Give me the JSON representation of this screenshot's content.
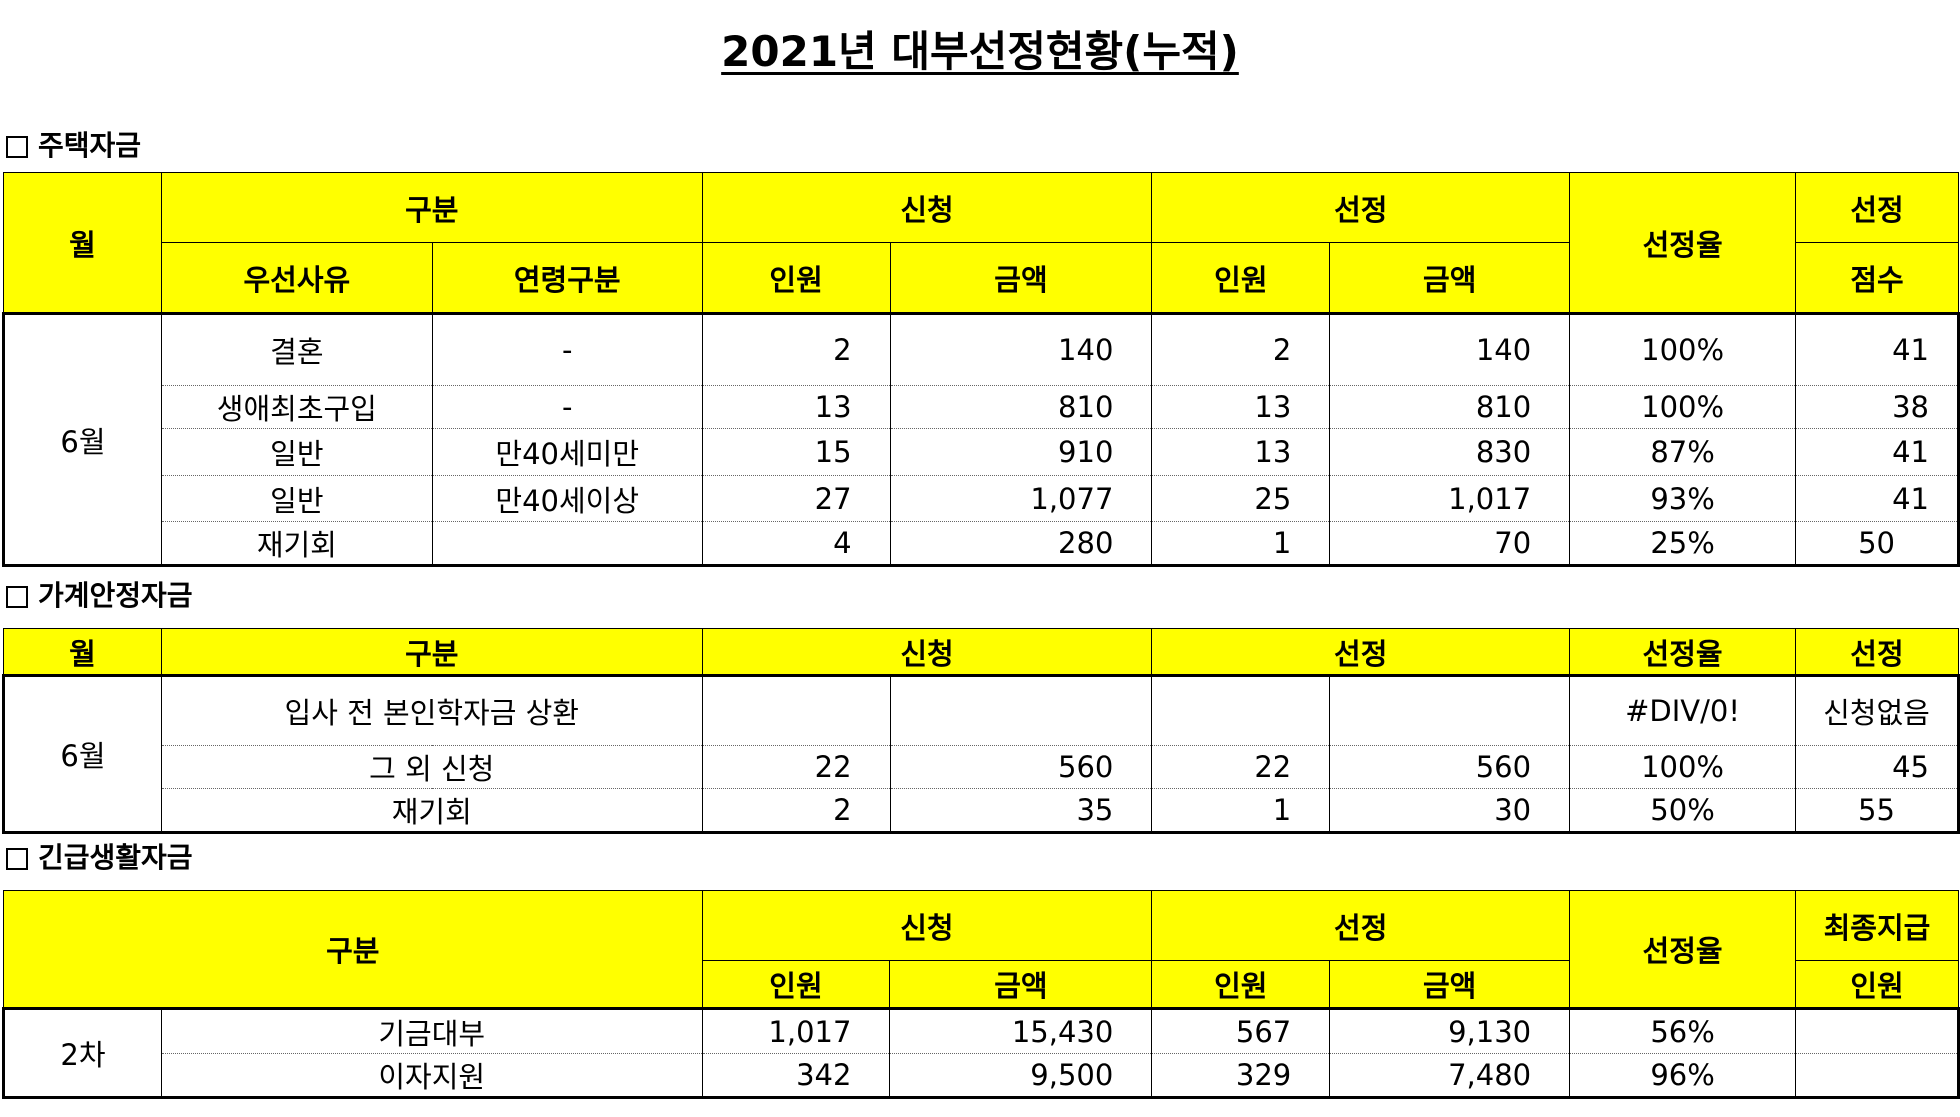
{
  "title": "2021년 대부선정현황(누적)",
  "sections": {
    "housing": "주택자금",
    "household": "가계안정자금",
    "emergency": "긴급생활자금"
  },
  "housing": {
    "headers": {
      "month": "월",
      "category": "구분",
      "reason": "우선사유",
      "age": "연령구분",
      "apply": "신청",
      "select": "선정",
      "people": "인원",
      "amount": "금액",
      "rate": "선정율",
      "score_top": "선정",
      "score_bottom": "점수"
    },
    "month": "6월",
    "rows": [
      {
        "reason": "결혼",
        "age": "-",
        "ap": "2",
        "aa": "140",
        "sp": "2",
        "sa": "140",
        "rate": "100%",
        "score": "41"
      },
      {
        "reason": "생애최초구입",
        "age": "-",
        "ap": "13",
        "aa": "810",
        "sp": "13",
        "sa": "810",
        "rate": "100%",
        "score": "38"
      },
      {
        "reason": "일반",
        "age": "만40세미만",
        "ap": "15",
        "aa": "910",
        "sp": "13",
        "sa": "830",
        "rate": "87%",
        "score": "41"
      },
      {
        "reason": "일반",
        "age": "만40세이상",
        "ap": "27",
        "aa": "1,077",
        "sp": "25",
        "sa": "1,017",
        "rate": "93%",
        "score": "41"
      },
      {
        "reason": "재기회",
        "age": "",
        "ap": "4",
        "aa": "280",
        "sp": "1",
        "sa": "70",
        "rate": "25%",
        "score": "50"
      }
    ]
  },
  "household": {
    "headers": {
      "month": "월",
      "category": "구분",
      "apply": "신청",
      "select": "선정",
      "rate": "선정율",
      "score": "선정"
    },
    "month": "6월",
    "rows": [
      {
        "cat": "입사 전 본인학자금 상환",
        "ap": "",
        "aa": "",
        "sp": "",
        "sa": "",
        "rate": "#DIV/0!",
        "score": "신청없음"
      },
      {
        "cat": "그 외 신청",
        "ap": "22",
        "aa": "560",
        "sp": "22",
        "sa": "560",
        "rate": "100%",
        "score": "45"
      },
      {
        "cat": "재기회",
        "ap": "2",
        "aa": "35",
        "sp": "1",
        "sa": "30",
        "rate": "50%",
        "score": "55"
      }
    ]
  },
  "emergency": {
    "headers": {
      "category": "구분",
      "apply": "신청",
      "select": "선정",
      "people": "인원",
      "amount": "금액",
      "rate": "선정율",
      "final_top": "최종지급",
      "final_bottom": "인원"
    },
    "round": "2차",
    "rows": [
      {
        "cat": "기금대부",
        "ap": "1,017",
        "aa": "15,430",
        "sp": "567",
        "sa": "9,130",
        "rate": "56%",
        "final": ""
      },
      {
        "cat": "이자지원",
        "ap": "342",
        "aa": "9,500",
        "sp": "329",
        "sa": "7,480",
        "rate": "96%",
        "final": ""
      }
    ]
  }
}
